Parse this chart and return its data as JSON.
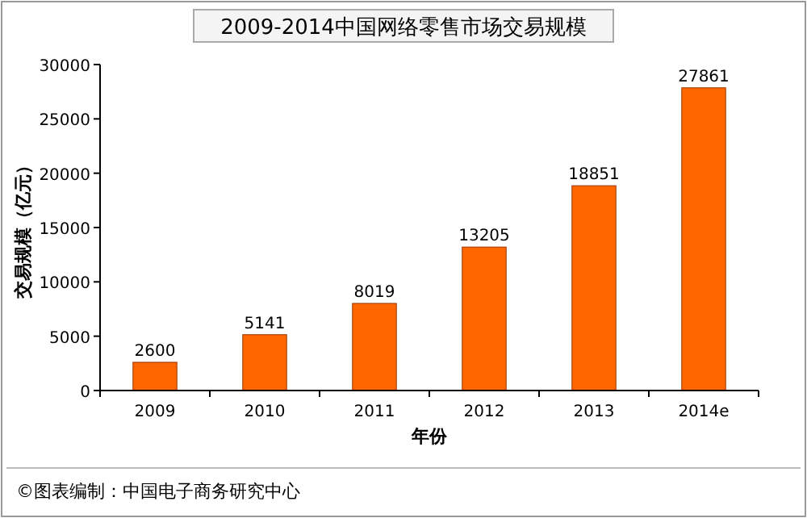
{
  "chart_data": {
    "type": "bar",
    "title": "2009-2014中国网络零售市场交易规模",
    "xlabel": "年份",
    "ylabel": "交易规模（亿元）",
    "categories": [
      "2009",
      "2010",
      "2011",
      "2012",
      "2013",
      "2014e"
    ],
    "values": [
      2600,
      5141,
      8019,
      13205,
      18851,
      27861
    ],
    "color": "#ff6600",
    "data_labels": true,
    "ylim": [
      0,
      30000
    ],
    "yticks": [
      0,
      5000,
      10000,
      15000,
      20000,
      25000,
      30000
    ],
    "grid": false,
    "annotations": [
      "©图表编制：中国电子商务研究中心"
    ]
  }
}
